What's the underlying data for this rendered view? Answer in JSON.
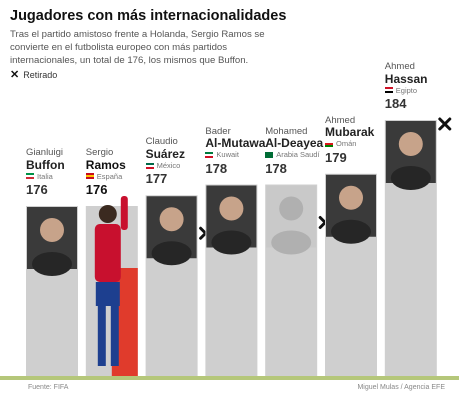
{
  "header": {
    "title": "Jugadores con más internacionalidades",
    "subtitle": "Tras el partido amistoso frente a Holanda, Sergio Ramos se convierte en el futbolista europeo con más partidos internacionales, un total de 176, los mismos que Buffon.",
    "legend_retired": "Retirado"
  },
  "chart_data": {
    "type": "bar",
    "title": "Jugadores con más internacionalidades",
    "categories": [
      "Buffon",
      "Ramos",
      "Suárez",
      "Al-Mutawa",
      "Al-Deayea",
      "Mubarak",
      "Hassan"
    ],
    "values": [
      176,
      176,
      177,
      178,
      178,
      179,
      184
    ],
    "players": [
      {
        "first": "Gianluigi",
        "last": "Buffon",
        "country": "Italia",
        "value": 176,
        "retired": false,
        "highlight": false,
        "flag": [
          "#009246",
          "#ffffff",
          "#ce2b37"
        ]
      },
      {
        "first": "Sergio",
        "last": "Ramos",
        "country": "España",
        "value": 176,
        "retired": false,
        "highlight": true,
        "flag": [
          "#c60b1e",
          "#ffc400",
          "#c60b1e"
        ]
      },
      {
        "first": "Claudio",
        "last": "Suárez",
        "country": "México",
        "value": 177,
        "retired": true,
        "highlight": false,
        "flag": [
          "#006847",
          "#ffffff",
          "#ce1126"
        ]
      },
      {
        "first": "Bader",
        "last": "Al-Mutawa",
        "country": "Kuwait",
        "value": 178,
        "retired": false,
        "highlight": false,
        "flag": [
          "#007a3d",
          "#ffffff",
          "#ce1126"
        ]
      },
      {
        "first": "Mohamed",
        "last": "Al-Deayea",
        "country": "Arabia Saudí",
        "value": 178,
        "retired": true,
        "highlight": false,
        "flag": [
          "#006c35",
          "#006c35",
          "#006c35"
        ]
      },
      {
        "first": "Ahmed",
        "last": "Mubarak",
        "country": "Omán",
        "value": 179,
        "retired": false,
        "highlight": false,
        "flag": [
          "#ffffff",
          "#db161b",
          "#008000"
        ]
      },
      {
        "first": "Ahmed",
        "last": "Hassan",
        "country": "Egipto",
        "value": 184,
        "retired": true,
        "highlight": false,
        "flag": [
          "#ce1126",
          "#ffffff",
          "#000000"
        ]
      }
    ],
    "colors": {
      "bar": "#cfcfcf",
      "highlight": "#e03b2c",
      "grass": "#b5c77a"
    }
  },
  "footer": {
    "source": "Fuente: FIFA",
    "credit": "Miguel Mulas / Agencia EFE"
  }
}
